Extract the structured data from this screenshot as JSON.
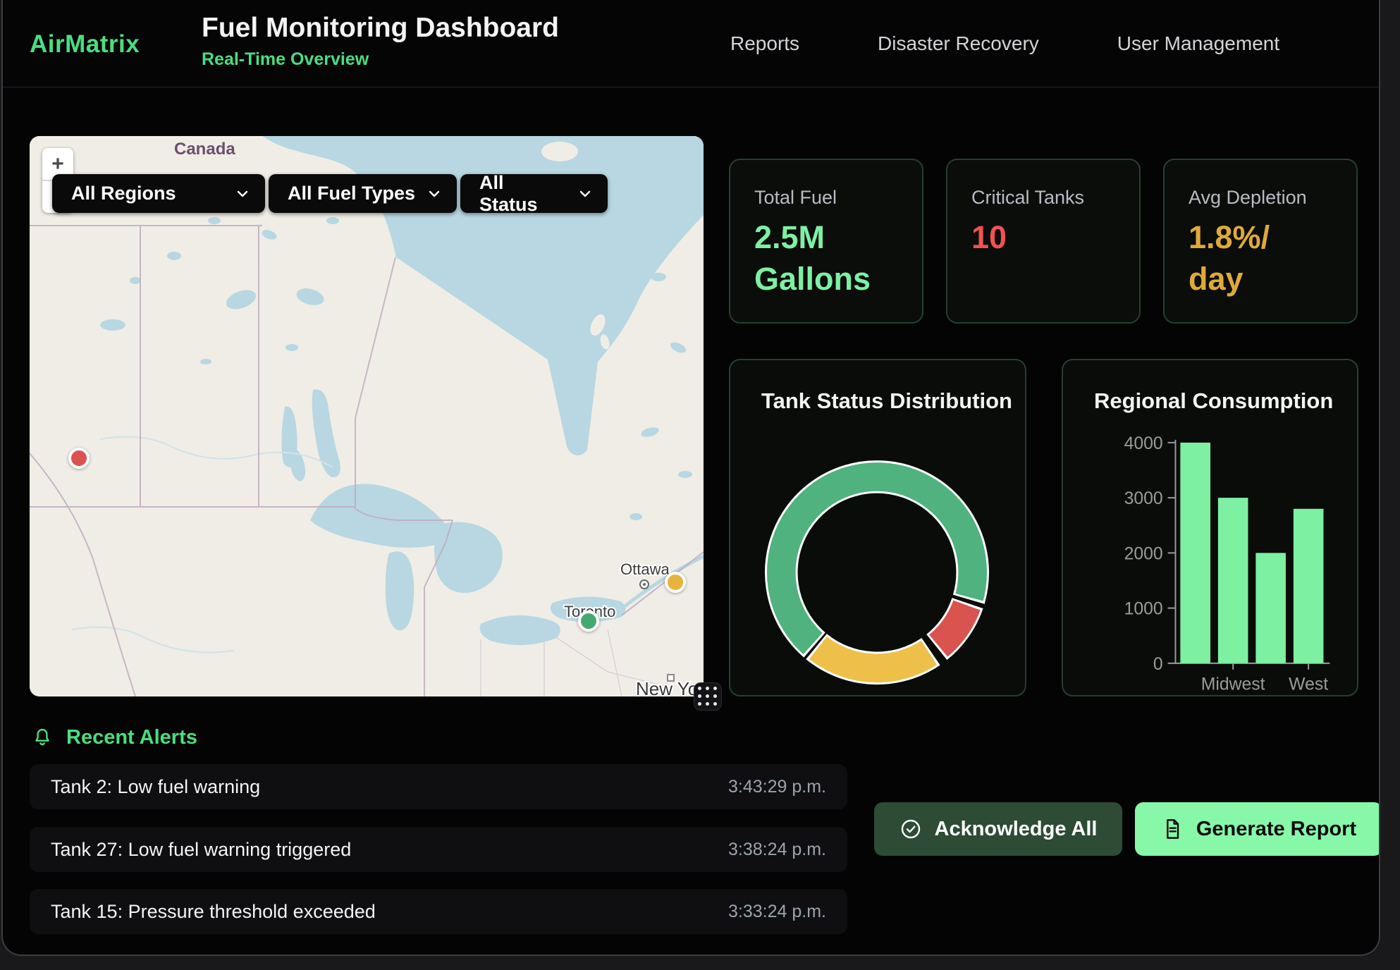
{
  "header": {
    "brand": "AirMatrix",
    "title": "Fuel Monitoring Dashboard",
    "subtitle": "Real-Time Overview",
    "nav": [
      {
        "label": "Reports"
      },
      {
        "label": "Disaster Recovery"
      },
      {
        "label": "User Management"
      }
    ]
  },
  "map": {
    "zoom_in": "+",
    "zoom_out": "−",
    "filters": [
      {
        "label": "All Regions"
      },
      {
        "label": "All Fuel Types"
      },
      {
        "label": "All Status"
      }
    ],
    "labels": {
      "country": "Canada",
      "city_ottawa": "Ottawa",
      "city_toronto": "Toronto",
      "city_newyork": "New York"
    },
    "markers": [
      {
        "status": "critical",
        "color": "#dd5150"
      },
      {
        "status": "warning",
        "color": "#e8b33c"
      },
      {
        "status": "normal",
        "color": "#45a871"
      }
    ]
  },
  "stats": [
    {
      "label": "Total Fuel",
      "value": "2.5M Gallons",
      "color": "#7ef0a3"
    },
    {
      "label": "Critical Tanks",
      "value": "10",
      "color": "#ef5350"
    },
    {
      "label": "Avg Depletion",
      "value": "1.8%/ day",
      "color": "#e0aa38"
    }
  ],
  "chart_data": [
    {
      "type": "donut",
      "title": "Tank Status Distribution",
      "border_color": "#ffffff",
      "segments": [
        {
          "label": "normal",
          "color": "#4fb27f",
          "start_deg": 222,
          "end_deg": 465,
          "approx_percent": 67.5
        },
        {
          "label": "critical",
          "color": "#d9534f",
          "start_deg": 470,
          "end_deg": 500,
          "approx_percent": 8.3
        },
        {
          "label": "warning",
          "color": "#eec04a",
          "start_deg": 507,
          "end_deg": 578,
          "approx_percent": 19.7
        }
      ]
    },
    {
      "type": "bar",
      "title": "Regional Consumption",
      "values": [
        4000,
        3000,
        2000,
        2800
      ],
      "visible_tick_labels": [
        {
          "label": "Midwest",
          "bar_index": 1
        },
        {
          "label": "West",
          "bar_index": 3
        }
      ],
      "y_ticks": [
        0,
        1000,
        2000,
        3000,
        4000
      ],
      "ylim": [
        0,
        4000
      ],
      "bar_color": "#7df0a1",
      "axis_color": "#9a9a9a",
      "legend": "none",
      "grid": "off"
    }
  ],
  "alerts": {
    "title": "Recent Alerts",
    "items": [
      {
        "text": "Tank 2: Low fuel warning",
        "time": "3:43:29 p.m."
      },
      {
        "text": "Tank 27: Low fuel warning triggered",
        "time": "3:38:24 p.m."
      },
      {
        "text": "Tank 15: Pressure threshold exceeded",
        "time": "3:33:24 p.m."
      }
    ]
  },
  "actions": {
    "acknowledge": "Acknowledge All",
    "generate": "Generate Report"
  }
}
